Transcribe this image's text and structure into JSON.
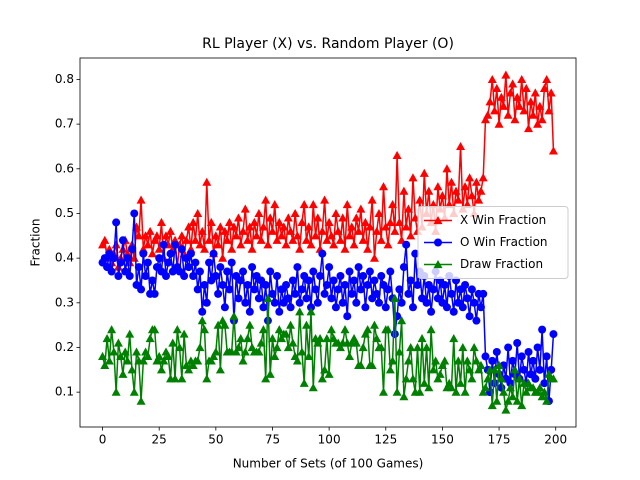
{
  "chart_data": {
    "type": "line",
    "title": "RL Player (X) vs. Random Player (O)",
    "xlabel": "Number of Sets (of 100 Games)",
    "ylabel": "Fraction",
    "xlim": [
      -9.95,
      208.95
    ],
    "ylim": [
      0.022,
      0.848
    ],
    "xticks": [
      0,
      25,
      50,
      75,
      100,
      125,
      150,
      175,
      200
    ],
    "yticks": [
      0.1,
      0.2,
      0.3,
      0.4,
      0.5,
      0.6,
      0.7,
      0.8
    ],
    "legend": "center right",
    "series": [
      {
        "name": "X Win Fraction",
        "color": "#ff0000",
        "marker": "triangle",
        "values": [
          0.43,
          0.44,
          0.4,
          0.42,
          0.39,
          0.41,
          0.43,
          0.38,
          0.4,
          0.42,
          0.44,
          0.41,
          0.39,
          0.43,
          0.4,
          0.47,
          0.45,
          0.53,
          0.42,
          0.45,
          0.43,
          0.46,
          0.41,
          0.44,
          0.45,
          0.42,
          0.48,
          0.4,
          0.45,
          0.43,
          0.46,
          0.42,
          0.44,
          0.38,
          0.43,
          0.45,
          0.41,
          0.44,
          0.47,
          0.42,
          0.48,
          0.44,
          0.5,
          0.43,
          0.46,
          0.42,
          0.57,
          0.44,
          0.48,
          0.41,
          0.45,
          0.43,
          0.47,
          0.4,
          0.46,
          0.44,
          0.48,
          0.42,
          0.47,
          0.45,
          0.49,
          0.43,
          0.46,
          0.51,
          0.44,
          0.47,
          0.42,
          0.48,
          0.45,
          0.5,
          0.44,
          0.47,
          0.53,
          0.43,
          0.49,
          0.46,
          0.52,
          0.44,
          0.48,
          0.45,
          0.47,
          0.43,
          0.49,
          0.46,
          0.44,
          0.5,
          0.45,
          0.42,
          0.48,
          0.52,
          0.44,
          0.47,
          0.43,
          0.52,
          0.45,
          0.49,
          0.42,
          0.46,
          0.53,
          0.44,
          0.48,
          0.45,
          0.43,
          0.5,
          0.46,
          0.44,
          0.49,
          0.42,
          0.52,
          0.45,
          0.47,
          0.43,
          0.49,
          0.46,
          0.51,
          0.44,
          0.48,
          0.42,
          0.47,
          0.53,
          0.4,
          0.46,
          0.5,
          0.44,
          0.56,
          0.47,
          0.43,
          0.48,
          0.52,
          0.46,
          0.63,
          0.48,
          0.44,
          0.55,
          0.47,
          0.51,
          0.45,
          0.58,
          0.49,
          0.46,
          0.53,
          0.47,
          0.59,
          0.5,
          0.55,
          0.48,
          0.52,
          0.46,
          0.56,
          0.51,
          0.54,
          0.49,
          0.6,
          0.52,
          0.57,
          0.5,
          0.55,
          0.53,
          0.65,
          0.51,
          0.56,
          0.52,
          0.58,
          0.54,
          0.5,
          0.57,
          0.53,
          0.55,
          0.58,
          0.71,
          0.72,
          0.75,
          0.8,
          0.73,
          0.78,
          0.7,
          0.76,
          0.74,
          0.81,
          0.72,
          0.77,
          0.79,
          0.71,
          0.76,
          0.74,
          0.8,
          0.73,
          0.78,
          0.69,
          0.75,
          0.72,
          0.77,
          0.7,
          0.74,
          0.71,
          0.78,
          0.8,
          0.73,
          0.77,
          0.64
        ]
      },
      {
        "name": "O Win Fraction",
        "color": "#0000ff",
        "marker": "circle",
        "values": [
          0.39,
          0.4,
          0.38,
          0.41,
          0.37,
          0.4,
          0.48,
          0.36,
          0.39,
          0.44,
          0.37,
          0.4,
          0.36,
          0.42,
          0.5,
          0.34,
          0.38,
          0.33,
          0.41,
          0.36,
          0.39,
          0.32,
          0.35,
          0.32,
          0.38,
          0.4,
          0.37,
          0.43,
          0.36,
          0.39,
          0.41,
          0.37,
          0.43,
          0.38,
          0.37,
          0.42,
          0.36,
          0.4,
          0.38,
          0.41,
          0.36,
          0.39,
          0.33,
          0.37,
          0.28,
          0.34,
          0.3,
          0.39,
          0.35,
          0.41,
          0.36,
          0.32,
          0.38,
          0.34,
          0.29,
          0.37,
          0.33,
          0.39,
          0.26,
          0.36,
          0.31,
          0.35,
          0.37,
          0.3,
          0.34,
          0.28,
          0.38,
          0.33,
          0.36,
          0.31,
          0.35,
          0.29,
          0.34,
          0.26,
          0.37,
          0.32,
          0.3,
          0.36,
          0.28,
          0.33,
          0.3,
          0.34,
          0.31,
          0.29,
          0.35,
          0.32,
          0.38,
          0.3,
          0.33,
          0.36,
          0.31,
          0.35,
          0.29,
          0.37,
          0.33,
          0.3,
          0.36,
          0.41,
          0.32,
          0.34,
          0.38,
          0.31,
          0.35,
          0.29,
          0.33,
          0.36,
          0.3,
          0.34,
          0.27,
          0.37,
          0.32,
          0.35,
          0.3,
          0.38,
          0.33,
          0.36,
          0.29,
          0.34,
          0.37,
          0.31,
          0.35,
          0.32,
          0.3,
          0.36,
          0.34,
          0.29,
          0.33,
          0.37,
          0.31,
          0.23,
          0.27,
          0.33,
          0.3,
          0.38,
          0.43,
          0.32,
          0.35,
          0.29,
          0.41,
          0.34,
          0.37,
          0.31,
          0.36,
          0.3,
          0.34,
          0.28,
          0.33,
          0.37,
          0.31,
          0.35,
          0.3,
          0.34,
          0.29,
          0.36,
          0.32,
          0.28,
          0.35,
          0.3,
          0.33,
          0.29,
          0.34,
          0.31,
          0.27,
          0.33,
          0.3,
          0.26,
          0.32,
          0.29,
          0.32,
          0.18,
          0.15,
          0.1,
          0.17,
          0.12,
          0.19,
          0.14,
          0.11,
          0.16,
          0.13,
          0.2,
          0.12,
          0.17,
          0.14,
          0.21,
          0.13,
          0.18,
          0.15,
          0.12,
          0.19,
          0.14,
          0.17,
          0.13,
          0.2,
          0.15,
          0.24,
          0.12,
          0.18,
          0.08,
          0.15,
          0.23
        ]
      },
      {
        "name": "Draw Fraction",
        "color": "#008000",
        "marker": "triangle",
        "values": [
          0.18,
          0.16,
          0.22,
          0.17,
          0.24,
          0.19,
          0.1,
          0.21,
          0.18,
          0.14,
          0.19,
          0.17,
          0.23,
          0.15,
          0.1,
          0.19,
          0.17,
          0.08,
          0.17,
          0.19,
          0.18,
          0.22,
          0.24,
          0.24,
          0.17,
          0.18,
          0.15,
          0.17,
          0.19,
          0.18,
          0.13,
          0.21,
          0.13,
          0.24,
          0.2,
          0.13,
          0.23,
          0.16,
          0.15,
          0.17,
          0.16,
          0.17,
          0.17,
          0.2,
          0.26,
          0.24,
          0.13,
          0.17,
          0.17,
          0.18,
          0.19,
          0.25,
          0.15,
          0.26,
          0.25,
          0.19,
          0.19,
          0.19,
          0.27,
          0.19,
          0.2,
          0.22,
          0.17,
          0.19,
          0.22,
          0.25,
          0.2,
          0.19,
          0.19,
          0.19,
          0.21,
          0.24,
          0.13,
          0.31,
          0.14,
          0.22,
          0.18,
          0.2,
          0.24,
          0.22,
          0.23,
          0.23,
          0.2,
          0.25,
          0.21,
          0.18,
          0.17,
          0.28,
          0.19,
          0.12,
          0.25,
          0.18,
          0.28,
          0.11,
          0.22,
          0.21,
          0.22,
          0.13,
          0.15,
          0.22,
          0.14,
          0.24,
          0.22,
          0.21,
          0.21,
          0.2,
          0.21,
          0.24,
          0.21,
          0.18,
          0.21,
          0.22,
          0.21,
          0.16,
          0.16,
          0.2,
          0.23,
          0.24,
          0.16,
          0.16,
          0.25,
          0.22,
          0.2,
          0.2,
          0.1,
          0.24,
          0.24,
          0.15,
          0.17,
          0.31,
          0.1,
          0.19,
          0.26,
          0.09,
          0.13,
          0.17,
          0.2,
          0.13,
          0.1,
          0.2,
          0.1,
          0.22,
          0.12,
          0.2,
          0.11,
          0.24,
          0.15,
          0.17,
          0.13,
          0.14,
          0.16,
          0.17,
          0.11,
          0.12,
          0.11,
          0.22,
          0.1,
          0.17,
          0.12,
          0.2,
          0.1,
          0.17,
          0.15,
          0.13,
          0.2,
          0.17,
          0.15,
          0.16,
          0.1,
          0.11,
          0.13,
          0.15,
          0.07,
          0.15,
          0.08,
          0.16,
          0.13,
          0.1,
          0.06,
          0.08,
          0.11,
          0.09,
          0.15,
          0.08,
          0.13,
          0.07,
          0.12,
          0.1,
          0.12,
          0.11,
          0.11,
          0.1,
          0.1,
          0.11,
          0.09,
          0.1,
          0.08,
          0.14,
          0.13,
          0.13
        ]
      }
    ]
  }
}
